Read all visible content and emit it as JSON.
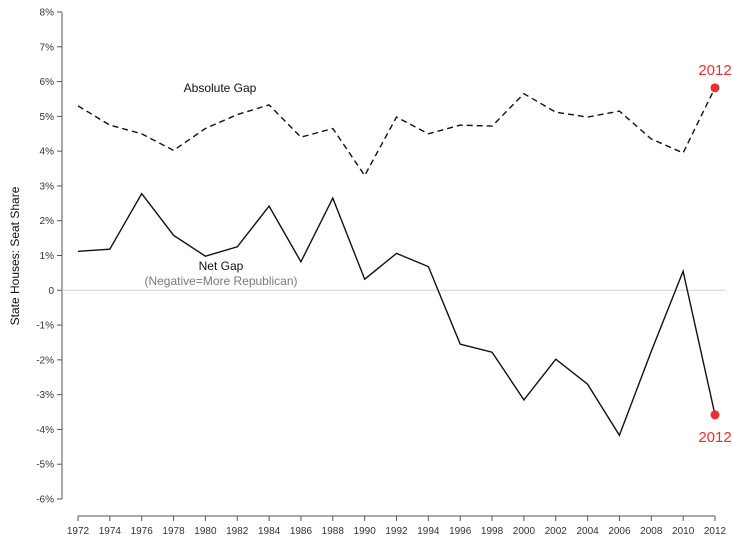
{
  "chart_data": {
    "type": "line",
    "ylabel": "State Houses: Seat Share",
    "x": [
      1972,
      1974,
      1976,
      1978,
      1980,
      1982,
      1984,
      1986,
      1988,
      1990,
      1992,
      1994,
      1996,
      1998,
      2000,
      2002,
      2004,
      2006,
      2008,
      2010,
      2012
    ],
    "x_tick_labels": [
      "1972",
      "1974",
      "1976",
      "1978",
      "1980",
      "1982",
      "1984",
      "1986",
      "1988",
      "1990",
      "1992",
      "1994",
      "1996",
      "1998",
      "2000",
      "2002",
      "2004",
      "2006",
      "2008",
      "2010",
      "2012"
    ],
    "ylim": [
      -6,
      8
    ],
    "y_ticks": [
      -6,
      -5,
      -4,
      -3,
      -2,
      -1,
      0,
      1,
      2,
      3,
      4,
      5,
      6,
      7,
      8
    ],
    "y_tick_labels": [
      "-6%",
      "-5%",
      "-4%",
      "-3%",
      "-2%",
      "-1%",
      "0",
      "1%",
      "2%",
      "3%",
      "4%",
      "5%",
      "6%",
      "7%",
      "8%"
    ],
    "grid": false,
    "zero_line": true,
    "series": [
      {
        "name": "Absolute Gap",
        "style": "dashed",
        "color": "#111111",
        "values": [
          5.3,
          4.75,
          4.5,
          4.02,
          4.65,
          5.05,
          5.33,
          4.4,
          4.65,
          3.3,
          4.98,
          4.5,
          4.75,
          4.72,
          5.65,
          5.12,
          4.98,
          5.15,
          4.35,
          3.95,
          5.82
        ]
      },
      {
        "name": "Net Gap",
        "style": "solid",
        "color": "#111111",
        "values": [
          1.12,
          1.18,
          2.78,
          1.58,
          0.98,
          1.25,
          2.42,
          0.82,
          2.65,
          0.32,
          1.06,
          0.68,
          -1.55,
          -1.78,
          -3.15,
          -1.98,
          -2.7,
          -4.17,
          -1.75,
          0.55,
          -3.58
        ]
      }
    ],
    "annotations": {
      "absolute_label": "Absolute Gap",
      "net_label": "Net Gap",
      "net_sublabel": "(Negative=More Republican)",
      "highlight_top_label": "2012",
      "highlight_bottom_label": "2012"
    },
    "highlight_color": "#e8312f"
  }
}
